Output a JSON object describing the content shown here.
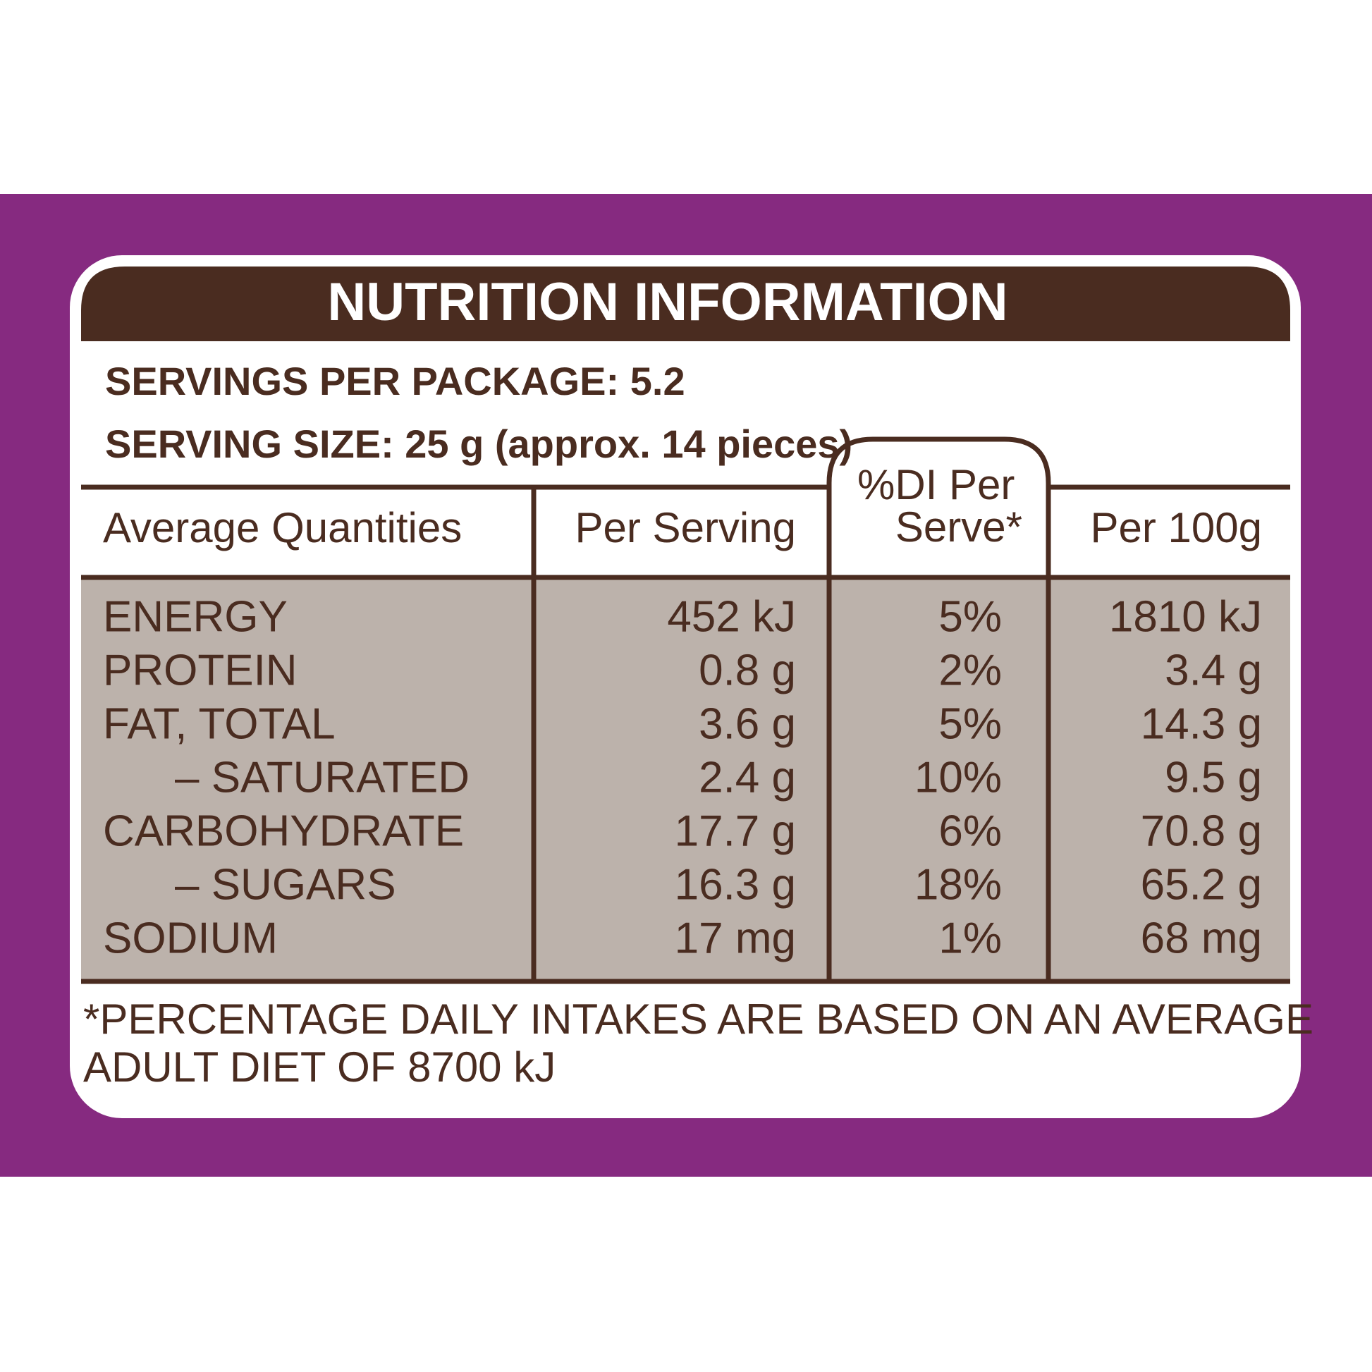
{
  "header": {
    "title": "NUTRITION INFORMATION"
  },
  "servings_per_package": "SERVINGS PER PACKAGE: 5.2",
  "serving_size": "SERVING SIZE: 25 g (approx. 14 pieces)",
  "table": {
    "columns": [
      "Average Quantities",
      "Per Serving",
      [
        "%DI Per",
        "Serve*"
      ],
      "Per 100g"
    ],
    "rows": [
      [
        "ENERGY",
        "452 kJ",
        "5%",
        "1810 kJ"
      ],
      [
        "PROTEIN",
        "0.8 g",
        "2%",
        "3.4 g"
      ],
      [
        "FAT, TOTAL",
        "3.6 g",
        "5%",
        "14.3 g"
      ],
      [
        "– SATURATED",
        "2.4 g",
        "10%",
        "9.5 g"
      ],
      [
        "CARBOHYDRATE",
        "17.7 g",
        "6%",
        "70.8 g"
      ],
      [
        "– SUGARS",
        "16.3 g",
        "18%",
        "65.2 g"
      ],
      [
        "SODIUM",
        "17 mg",
        "1%",
        "68 mg"
      ]
    ]
  },
  "footnote": [
    "*PERCENTAGE DAILY INTAKES ARE BASED ON AN AVERAGE",
    "ADULT DIET OF 8700 kJ"
  ]
}
